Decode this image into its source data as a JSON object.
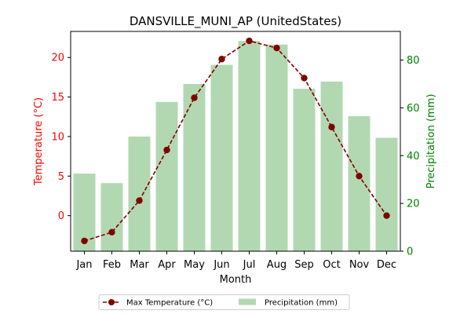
{
  "chart_data": {
    "type": "bar+line",
    "title": "DANSVILLE_MUNI_AP (UnitedStates)",
    "xlabel": "Month",
    "categories": [
      "Jan",
      "Feb",
      "Mar",
      "Apr",
      "May",
      "Jun",
      "Jul",
      "Aug",
      "Sep",
      "Oct",
      "Nov",
      "Dec"
    ],
    "left_axis": {
      "label": "Temperature (°C)",
      "color": "#ff0000",
      "ylim": [
        -4.5,
        23.3
      ],
      "ticks": [
        0,
        5,
        10,
        15,
        20
      ]
    },
    "right_axis": {
      "label": "Precipitation (mm)",
      "color": "#008000",
      "ylim": [
        0,
        92
      ],
      "ticks": [
        0,
        20,
        40,
        60,
        80
      ]
    },
    "series": [
      {
        "name": "Max Temperature (°C)",
        "kind": "line",
        "axis": "left",
        "color": "#800000",
        "values": [
          -3.2,
          -2.1,
          1.9,
          8.3,
          14.9,
          19.8,
          22.1,
          21.2,
          17.4,
          11.2,
          5.0,
          0.0
        ]
      },
      {
        "name": "Precipitation (mm)",
        "kind": "bar",
        "axis": "right",
        "color": "#b2d8b2",
        "values": [
          32.5,
          28.5,
          48.0,
          62.5,
          70.0,
          78.0,
          88.0,
          86.5,
          68.0,
          71.0,
          56.5,
          47.5
        ]
      }
    ],
    "legend": {
      "position": "bottom-center",
      "columns": 2
    },
    "grid": false
  }
}
